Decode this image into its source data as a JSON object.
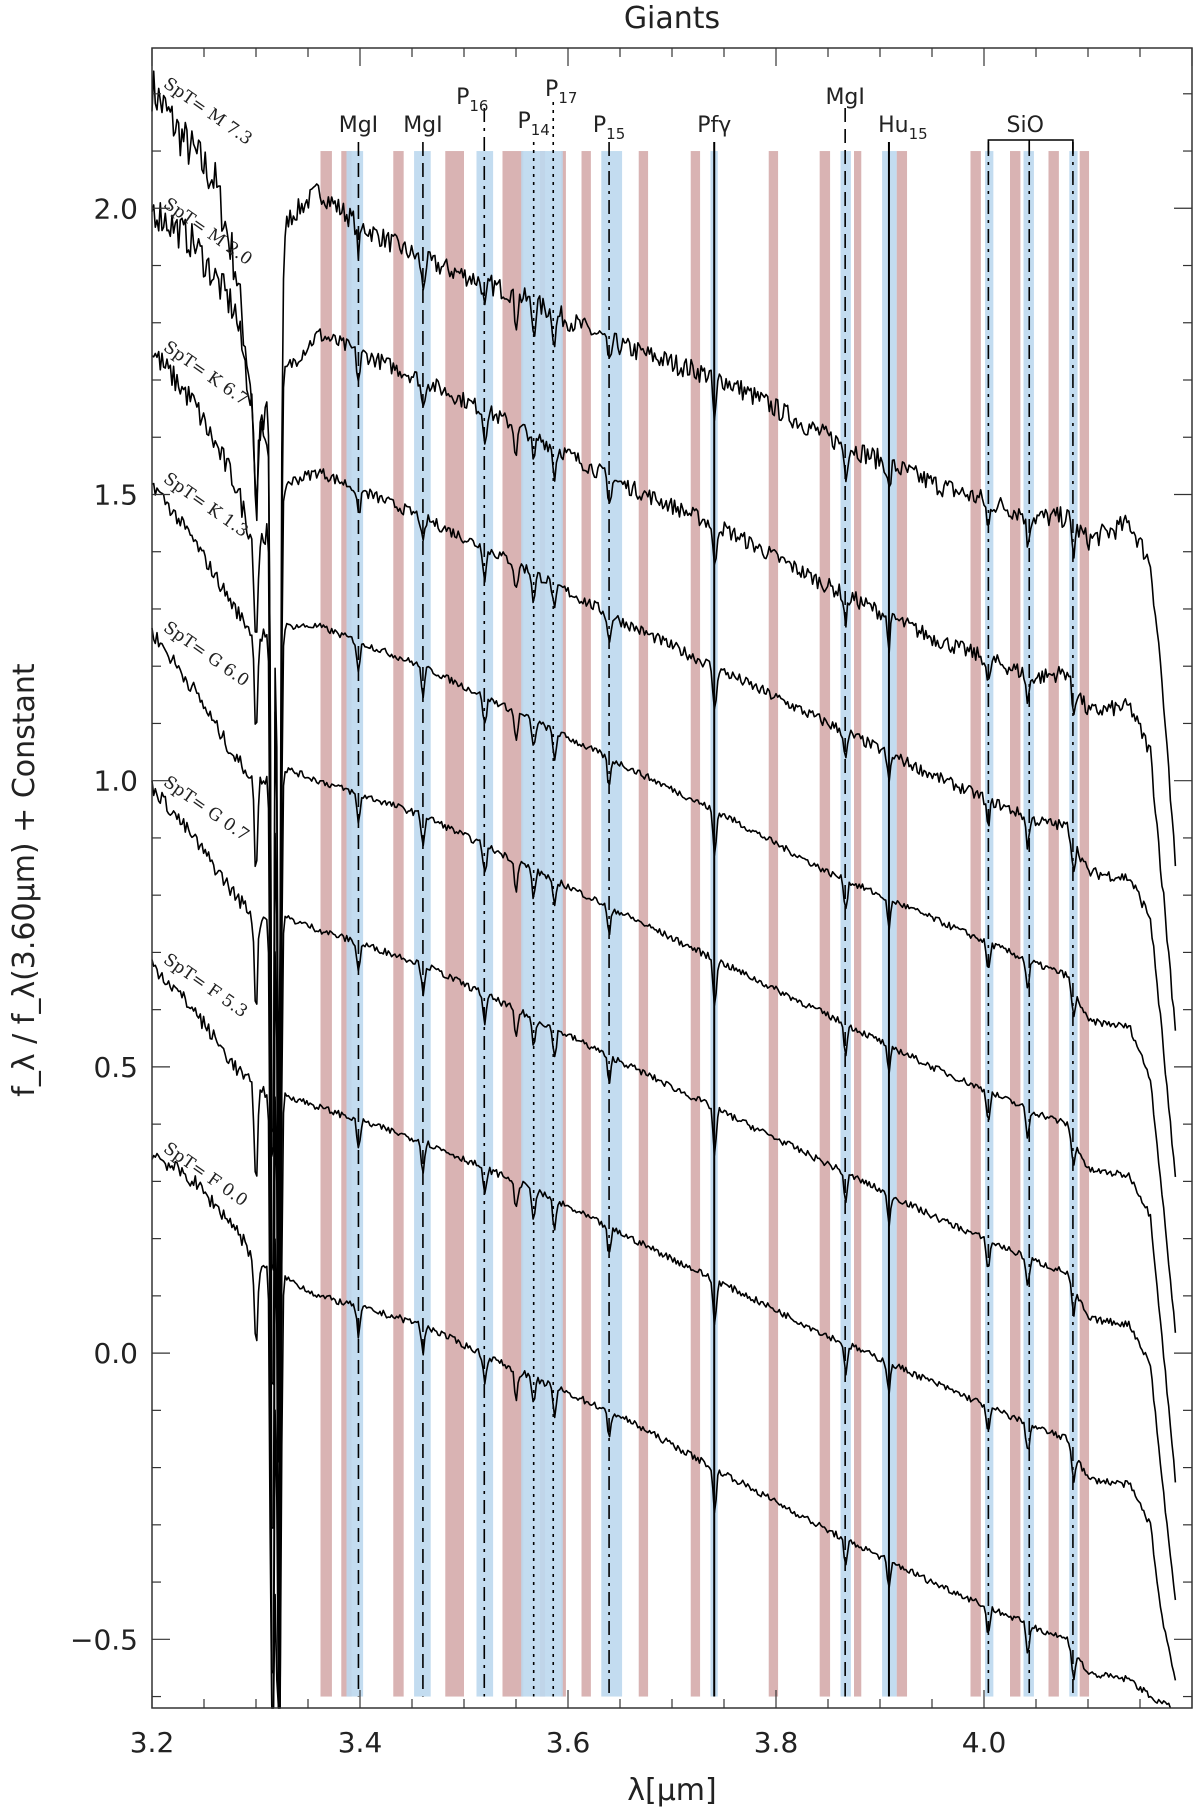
{
  "chart_data": {
    "type": "line",
    "title": "Giants",
    "xlabel": "λ[μm]",
    "ylabel": "f_λ / f_λ(3.60μm) + Constant",
    "xlim": [
      3.2,
      4.2
    ],
    "ylim": [
      -0.62,
      2.28
    ],
    "xticks": [
      3.2,
      3.4,
      3.6,
      3.8,
      4.0
    ],
    "xtick_labels": [
      "3.2",
      "3.4",
      "3.6",
      "3.8",
      "4.0"
    ],
    "yticks": [
      -0.5,
      0.0,
      0.5,
      1.0,
      1.5,
      2.0
    ],
    "ytick_labels": [
      "−0.5",
      "0.0",
      "0.5",
      "1.0",
      "1.5",
      "2.0"
    ],
    "grid": false,
    "legend": "none",
    "colors": {
      "line": "#000000",
      "red_band": "#d9b3b3",
      "blue_band": "#bcd8ee"
    },
    "series": [
      {
        "name": "SpT= M 7.3",
        "anchor": [
          [
            3.2,
            2.21
          ],
          [
            3.23,
            2.12
          ],
          [
            3.26,
            2.05
          ],
          [
            3.28,
            1.9
          ],
          [
            3.3,
            1.62
          ],
          [
            3.31,
            1.58
          ],
          [
            3.33,
            1.98
          ],
          [
            3.36,
            2.03
          ],
          [
            3.4,
            1.97
          ],
          [
            3.46,
            1.91
          ],
          [
            3.55,
            1.85
          ],
          [
            3.65,
            1.76
          ],
          [
            3.75,
            1.7
          ],
          [
            3.85,
            1.6
          ],
          [
            3.95,
            1.52
          ],
          [
            4.05,
            1.46
          ],
          [
            4.08,
            1.46
          ],
          [
            4.1,
            1.42
          ],
          [
            4.14,
            1.45
          ],
          [
            4.16,
            1.38
          ],
          [
            4.17,
            1.2
          ],
          [
            4.185,
            0.82
          ]
        ]
      },
      {
        "name": "SpT= M 2.0",
        "anchor": [
          [
            3.2,
            2.0
          ],
          [
            3.24,
            1.94
          ],
          [
            3.28,
            1.82
          ],
          [
            3.3,
            1.62
          ],
          [
            3.33,
            1.72
          ],
          [
            3.36,
            1.78
          ],
          [
            3.46,
            1.7
          ],
          [
            3.55,
            1.62
          ],
          [
            3.65,
            1.52
          ],
          [
            3.75,
            1.44
          ],
          [
            3.85,
            1.34
          ],
          [
            3.95,
            1.25
          ],
          [
            4.05,
            1.18
          ],
          [
            4.08,
            1.19
          ],
          [
            4.1,
            1.12
          ],
          [
            4.14,
            1.13
          ],
          [
            4.16,
            1.05
          ],
          [
            4.17,
            0.85
          ],
          [
            4.185,
            0.55
          ]
        ]
      },
      {
        "name": "SpT= K 6.7",
        "anchor": [
          [
            3.2,
            1.75
          ],
          [
            3.24,
            1.66
          ],
          [
            3.28,
            1.52
          ],
          [
            3.3,
            1.4
          ],
          [
            3.33,
            1.52
          ],
          [
            3.36,
            1.54
          ],
          [
            3.46,
            1.46
          ],
          [
            3.55,
            1.38
          ],
          [
            3.65,
            1.28
          ],
          [
            3.75,
            1.19
          ],
          [
            3.85,
            1.1
          ],
          [
            3.95,
            1.01
          ],
          [
            4.05,
            0.93
          ],
          [
            4.08,
            0.92
          ],
          [
            4.1,
            0.84
          ],
          [
            4.14,
            0.83
          ],
          [
            4.16,
            0.76
          ],
          [
            4.17,
            0.58
          ],
          [
            4.185,
            0.28
          ]
        ]
      },
      {
        "name": "SpT= K 1.3",
        "anchor": [
          [
            3.2,
            1.52
          ],
          [
            3.24,
            1.42
          ],
          [
            3.28,
            1.3
          ],
          [
            3.3,
            1.25
          ],
          [
            3.33,
            1.27
          ],
          [
            3.36,
            1.27
          ],
          [
            3.46,
            1.2
          ],
          [
            3.55,
            1.12
          ],
          [
            3.65,
            1.03
          ],
          [
            3.75,
            0.94
          ],
          [
            3.85,
            0.84
          ],
          [
            3.95,
            0.76
          ],
          [
            4.05,
            0.68
          ],
          [
            4.08,
            0.66
          ],
          [
            4.1,
            0.58
          ],
          [
            4.14,
            0.57
          ],
          [
            4.16,
            0.48
          ],
          [
            4.17,
            0.3
          ],
          [
            4.185,
            0.02
          ]
        ]
      },
      {
        "name": "SpT= G 6.0",
        "anchor": [
          [
            3.2,
            1.26
          ],
          [
            3.24,
            1.16
          ],
          [
            3.28,
            1.04
          ],
          [
            3.3,
            1.0
          ],
          [
            3.33,
            1.02
          ],
          [
            3.36,
            1.0
          ],
          [
            3.46,
            0.94
          ],
          [
            3.55,
            0.86
          ],
          [
            3.65,
            0.77
          ],
          [
            3.75,
            0.68
          ],
          [
            3.85,
            0.59
          ],
          [
            3.95,
            0.5
          ],
          [
            4.05,
            0.42
          ],
          [
            4.08,
            0.4
          ],
          [
            4.1,
            0.32
          ],
          [
            4.14,
            0.31
          ],
          [
            4.16,
            0.24
          ],
          [
            4.17,
            0.05
          ],
          [
            4.185,
            -0.24
          ]
        ]
      },
      {
        "name": "SpT= G 0.7",
        "anchor": [
          [
            3.2,
            0.99
          ],
          [
            3.24,
            0.9
          ],
          [
            3.28,
            0.8
          ],
          [
            3.3,
            0.76
          ],
          [
            3.33,
            0.76
          ],
          [
            3.36,
            0.74
          ],
          [
            3.46,
            0.68
          ],
          [
            3.55,
            0.6
          ],
          [
            3.65,
            0.51
          ],
          [
            3.75,
            0.42
          ],
          [
            3.85,
            0.33
          ],
          [
            3.95,
            0.24
          ],
          [
            4.05,
            0.16
          ],
          [
            4.08,
            0.14
          ],
          [
            4.1,
            0.06
          ],
          [
            4.14,
            0.05
          ],
          [
            4.16,
            -0.02
          ],
          [
            4.17,
            -0.2
          ],
          [
            4.185,
            -0.45
          ]
        ]
      },
      {
        "name": "SpT= F 5.3",
        "anchor": [
          [
            3.2,
            0.68
          ],
          [
            3.24,
            0.6
          ],
          [
            3.28,
            0.5
          ],
          [
            3.3,
            0.46
          ],
          [
            3.33,
            0.45
          ],
          [
            3.36,
            0.43
          ],
          [
            3.46,
            0.37
          ],
          [
            3.55,
            0.3
          ],
          [
            3.65,
            0.21
          ],
          [
            3.75,
            0.12
          ],
          [
            3.85,
            0.03
          ],
          [
            3.95,
            -0.05
          ],
          [
            4.05,
            -0.13
          ],
          [
            4.08,
            -0.15
          ],
          [
            4.1,
            -0.22
          ],
          [
            4.14,
            -0.23
          ],
          [
            4.16,
            -0.3
          ],
          [
            4.17,
            -0.45
          ],
          [
            4.185,
            -0.58
          ]
        ]
      },
      {
        "name": "SpT= F 0.0",
        "anchor": [
          [
            3.2,
            0.35
          ],
          [
            3.24,
            0.3
          ],
          [
            3.28,
            0.22
          ],
          [
            3.3,
            0.16
          ],
          [
            3.33,
            0.13
          ],
          [
            3.36,
            0.1
          ],
          [
            3.46,
            0.05
          ],
          [
            3.55,
            -0.03
          ],
          [
            3.65,
            -0.11
          ],
          [
            3.75,
            -0.21
          ],
          [
            3.85,
            -0.31
          ],
          [
            3.95,
            -0.4
          ],
          [
            4.05,
            -0.48
          ],
          [
            4.08,
            -0.5
          ],
          [
            4.1,
            -0.56
          ],
          [
            4.14,
            -0.57
          ],
          [
            4.16,
            -0.6
          ],
          [
            4.18,
            -0.62
          ]
        ]
      }
    ],
    "absorption_lines": [
      3.3,
      3.316,
      3.322,
      3.3985,
      3.4605,
      3.52,
      3.55,
      3.567,
      3.587,
      3.6395,
      3.741,
      3.867,
      3.9085,
      4.004,
      4.042,
      4.086
    ],
    "red_bands": [
      [
        3.362,
        3.373
      ],
      [
        3.382,
        3.392
      ],
      [
        3.432,
        3.442
      ],
      [
        3.482,
        3.5
      ],
      [
        3.537,
        3.557
      ],
      [
        3.573,
        3.578
      ],
      [
        3.593,
        3.598
      ],
      [
        3.613,
        3.622
      ],
      [
        3.668,
        3.677
      ],
      [
        3.718,
        3.727
      ],
      [
        3.793,
        3.802
      ],
      [
        3.842,
        3.852
      ],
      [
        3.875,
        3.882
      ],
      [
        3.916,
        3.926
      ],
      [
        3.987,
        3.997
      ],
      [
        4.025,
        4.035
      ],
      [
        4.062,
        4.072
      ],
      [
        4.092,
        4.101
      ]
    ],
    "blue_bands": [
      [
        3.387,
        3.403
      ],
      [
        3.452,
        3.468
      ],
      [
        3.512,
        3.528
      ],
      [
        3.555,
        3.595
      ],
      [
        3.632,
        3.652
      ],
      [
        3.737,
        3.744
      ],
      [
        3.862,
        3.872
      ],
      [
        3.902,
        3.916
      ],
      [
        4.001,
        4.009
      ],
      [
        4.038,
        4.048
      ],
      [
        4.082,
        4.09
      ]
    ],
    "feature_lines": [
      {
        "label": "MgI",
        "sub": "",
        "x": 3.3985,
        "style": "dashed"
      },
      {
        "label": "MgI",
        "sub": "",
        "x": 3.4605,
        "style": "dashed"
      },
      {
        "label": "P",
        "sub": "16",
        "x": 3.5195,
        "style": "dashdot"
      },
      {
        "label": "P",
        "sub": "14",
        "x": 3.567,
        "style": "dotted"
      },
      {
        "label": "P",
        "sub": "17",
        "x": 3.5858,
        "style": "dotted"
      },
      {
        "label": "P",
        "sub": "15",
        "x": 3.6395,
        "style": "dashdot"
      },
      {
        "label": "Pfγ",
        "sub": "",
        "x": 3.7406,
        "style": "solid"
      },
      {
        "label": "MgI",
        "sub": "",
        "x": 3.8665,
        "style": "dashed"
      },
      {
        "label": "Hu",
        "sub": "15",
        "x": 3.9086,
        "style": "solid"
      },
      {
        "label": "",
        "sub": "",
        "x": 4.0042,
        "style": "dashdot"
      },
      {
        "label": "",
        "sub": "",
        "x": 4.0435,
        "style": "dashdot"
      },
      {
        "label": "",
        "sub": "",
        "x": 4.0855,
        "style": "dashdot"
      }
    ],
    "sio_bracket": {
      "label": "SiO",
      "x_start": 4.0042,
      "x_mid": 4.0435,
      "x_end": 4.0855
    }
  }
}
